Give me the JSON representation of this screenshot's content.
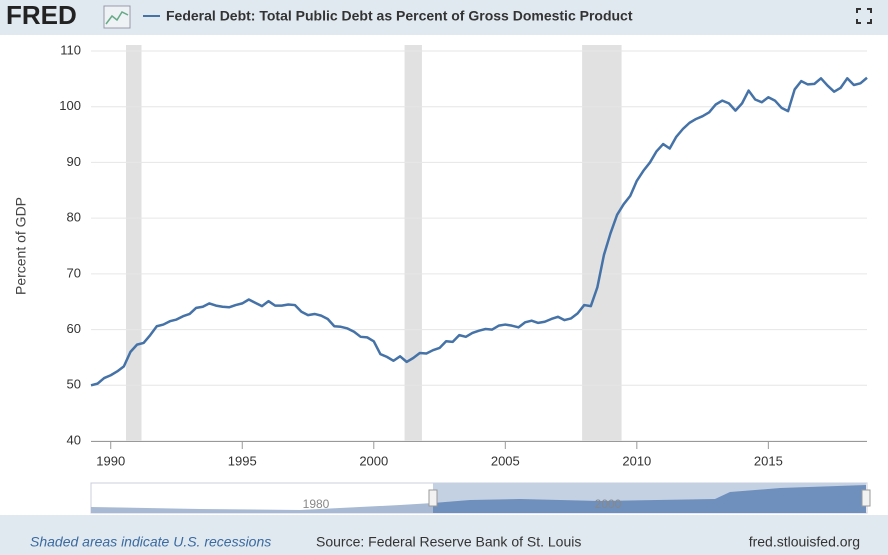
{
  "chart_data": {
    "type": "line",
    "logo": "FRED",
    "series": [
      {
        "name": "Federal Debt: Total Public Debt as Percent of Gross Domestic Product",
        "color": "#4572a7",
        "values": [
          50.0,
          50.3,
          51.3,
          51.8,
          52.5,
          53.4,
          56.0,
          57.3,
          57.6,
          59.0,
          60.6,
          60.9,
          61.5,
          61.8,
          62.4,
          62.8,
          63.9,
          64.1,
          64.7,
          64.3,
          64.1,
          64.0,
          64.4,
          64.7,
          65.4,
          64.8,
          64.2,
          65.1,
          64.3,
          64.3,
          64.5,
          64.4,
          63.2,
          62.6,
          62.8,
          62.5,
          61.9,
          60.6,
          60.5,
          60.2,
          59.6,
          58.7,
          58.6,
          57.9,
          55.6,
          55.1,
          54.4,
          55.2,
          54.2,
          54.9,
          55.8,
          55.7,
          56.3,
          56.7,
          57.9,
          57.8,
          59.0,
          58.7,
          59.4,
          59.8,
          60.1,
          60.0,
          60.7,
          60.9,
          60.7,
          60.4,
          61.3,
          61.6,
          61.2,
          61.4,
          61.9,
          62.3,
          61.7,
          62.0,
          62.9,
          64.4,
          64.2,
          67.6,
          73.4,
          77.3,
          80.6,
          82.5,
          84.0,
          86.7,
          88.5,
          90.0,
          92.0,
          93.3,
          92.5,
          94.6,
          96.0,
          97.1,
          97.8,
          98.3,
          99.0,
          100.4,
          101.1,
          100.6,
          99.3,
          100.6,
          102.9,
          101.3,
          100.8,
          101.7,
          101.1,
          99.8,
          99.2,
          103.1,
          104.6,
          104.0,
          104.1,
          105.1,
          103.8,
          102.7,
          103.4,
          105.1,
          103.9,
          104.2,
          105.2
        ]
      }
    ],
    "x": [
      1989.25,
      1989.5,
      1989.75,
      1990,
      1990.25,
      1990.5,
      1990.75,
      1991,
      1991.25,
      1991.5,
      1991.75,
      1992,
      1992.25,
      1992.5,
      1992.75,
      1993,
      1993.25,
      1993.5,
      1993.75,
      1994,
      1994.25,
      1994.5,
      1994.75,
      1995,
      1995.25,
      1995.5,
      1995.75,
      1996,
      1996.25,
      1996.5,
      1996.75,
      1997,
      1997.25,
      1997.5,
      1997.75,
      1998,
      1998.25,
      1998.5,
      1998.75,
      1999,
      1999.25,
      1999.5,
      1999.75,
      2000,
      2000.25,
      2000.5,
      2000.75,
      2001,
      2001.25,
      2001.5,
      2001.75,
      2002,
      2002.25,
      2002.5,
      2002.75,
      2003,
      2003.25,
      2003.5,
      2003.75,
      2004,
      2004.25,
      2004.5,
      2004.75,
      2005,
      2005.25,
      2005.5,
      2005.75,
      2006,
      2006.25,
      2006.5,
      2006.75,
      2007,
      2007.25,
      2007.5,
      2007.75,
      2008,
      2008.25,
      2008.5,
      2008.75,
      2009,
      2009.25,
      2009.5,
      2009.75,
      2010,
      2010.25,
      2010.5,
      2010.75,
      2011,
      2011.25,
      2011.5,
      2011.75,
      2012,
      2012.25,
      2012.5,
      2012.75,
      2013,
      2013.25,
      2013.5,
      2013.75,
      2014,
      2014.25,
      2014.5,
      2014.75,
      2015,
      2015.25,
      2015.5,
      2015.75,
      2016,
      2016.25,
      2016.5,
      2016.75,
      2017,
      2017.25,
      2017.5,
      2017.75,
      2018,
      2018.25,
      2018.5,
      2018.75
    ],
    "recessions": [
      [
        1990.58,
        1991.17
      ],
      [
        2001.17,
        2001.83
      ],
      [
        2007.92,
        2009.42
      ]
    ],
    "recession_color": "#e1e1e1",
    "xlim": [
      1989.25,
      2018.75
    ],
    "xticks": [
      1990,
      1995,
      2000,
      2005,
      2010,
      2015
    ],
    "ylim": [
      40,
      110
    ],
    "yticks": [
      40,
      50,
      60,
      70,
      80,
      90,
      100,
      110
    ],
    "grid": true,
    "ylabel": "Percent of GDP",
    "navigator_labels": [
      "1980",
      "2000"
    ],
    "note": "Shaded areas indicate U.S. recessions",
    "source": "Source: Federal Reserve Bank of St. Louis",
    "site": "fred.stlouisfed.org"
  }
}
